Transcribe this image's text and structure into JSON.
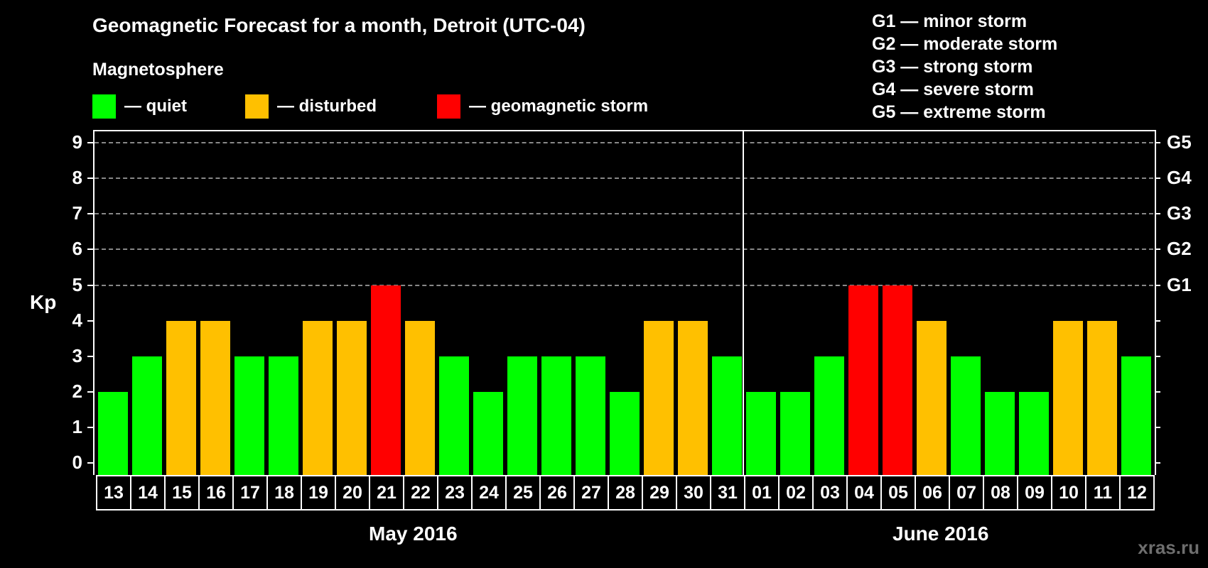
{
  "title": "Geomagnetic Forecast for a month, Detroit (UTC-04)",
  "subtitle": "Magnetosphere",
  "legend": [
    {
      "label": "— quiet",
      "color": "#00ff00"
    },
    {
      "label": "— disturbed",
      "color": "#ffc000"
    },
    {
      "label": "— geomagnetic storm",
      "color": "#ff0000"
    }
  ],
  "g_legend": [
    "G1 — minor storm",
    "G2 — moderate storm",
    "G3 — strong storm",
    "G4 — severe storm",
    "G5 — extreme storm"
  ],
  "y_axis_label": "Kp",
  "months": [
    "May 2016",
    "June 2016"
  ],
  "watermark": "xras.ru",
  "chart_data": {
    "type": "bar",
    "title": "Geomagnetic Forecast for a month, Detroit (UTC-04)",
    "subtitle": "Magnetosphere",
    "xlabel": "",
    "ylabel": "Kp",
    "ylim": [
      0,
      9
    ],
    "yticks": [
      0,
      1,
      2,
      3,
      4,
      5,
      6,
      7,
      8,
      9
    ],
    "right_axis_labels": {
      "5": "G1",
      "6": "G2",
      "7": "G3",
      "8": "G4",
      "9": "G5"
    },
    "grid": "dashed horizontal at Kp 5–9",
    "categories": [
      "13",
      "14",
      "15",
      "16",
      "17",
      "18",
      "19",
      "20",
      "21",
      "22",
      "23",
      "24",
      "25",
      "26",
      "27",
      "28",
      "29",
      "30",
      "31",
      "01",
      "02",
      "03",
      "04",
      "05",
      "06",
      "07",
      "08",
      "09",
      "10",
      "11",
      "12"
    ],
    "category_months": [
      "May 2016",
      "May 2016",
      "May 2016",
      "May 2016",
      "May 2016",
      "May 2016",
      "May 2016",
      "May 2016",
      "May 2016",
      "May 2016",
      "May 2016",
      "May 2016",
      "May 2016",
      "May 2016",
      "May 2016",
      "May 2016",
      "May 2016",
      "May 2016",
      "May 2016",
      "June 2016",
      "June 2016",
      "June 2016",
      "June 2016",
      "June 2016",
      "June 2016",
      "June 2016",
      "June 2016",
      "June 2016",
      "June 2016",
      "June 2016",
      "June 2016"
    ],
    "values": [
      2,
      3,
      4,
      4,
      3,
      3,
      4,
      4,
      5,
      4,
      3,
      2,
      3,
      3,
      3,
      2,
      4,
      4,
      3,
      2,
      2,
      3,
      5,
      5,
      4,
      3,
      2,
      2,
      4,
      4,
      3
    ],
    "status": [
      "quiet",
      "quiet",
      "disturbed",
      "disturbed",
      "quiet",
      "quiet",
      "disturbed",
      "disturbed",
      "storm",
      "disturbed",
      "quiet",
      "quiet",
      "quiet",
      "quiet",
      "quiet",
      "quiet",
      "disturbed",
      "disturbed",
      "quiet",
      "quiet",
      "quiet",
      "quiet",
      "storm",
      "storm",
      "disturbed",
      "quiet",
      "quiet",
      "quiet",
      "disturbed",
      "disturbed",
      "quiet"
    ],
    "legend": [
      {
        "label": "quiet",
        "color": "#00ff00"
      },
      {
        "label": "disturbed",
        "color": "#ffc000"
      },
      {
        "label": "geomagnetic storm",
        "color": "#ff0000"
      }
    ],
    "month_labels": [
      "May 2016",
      "June 2016"
    ]
  }
}
